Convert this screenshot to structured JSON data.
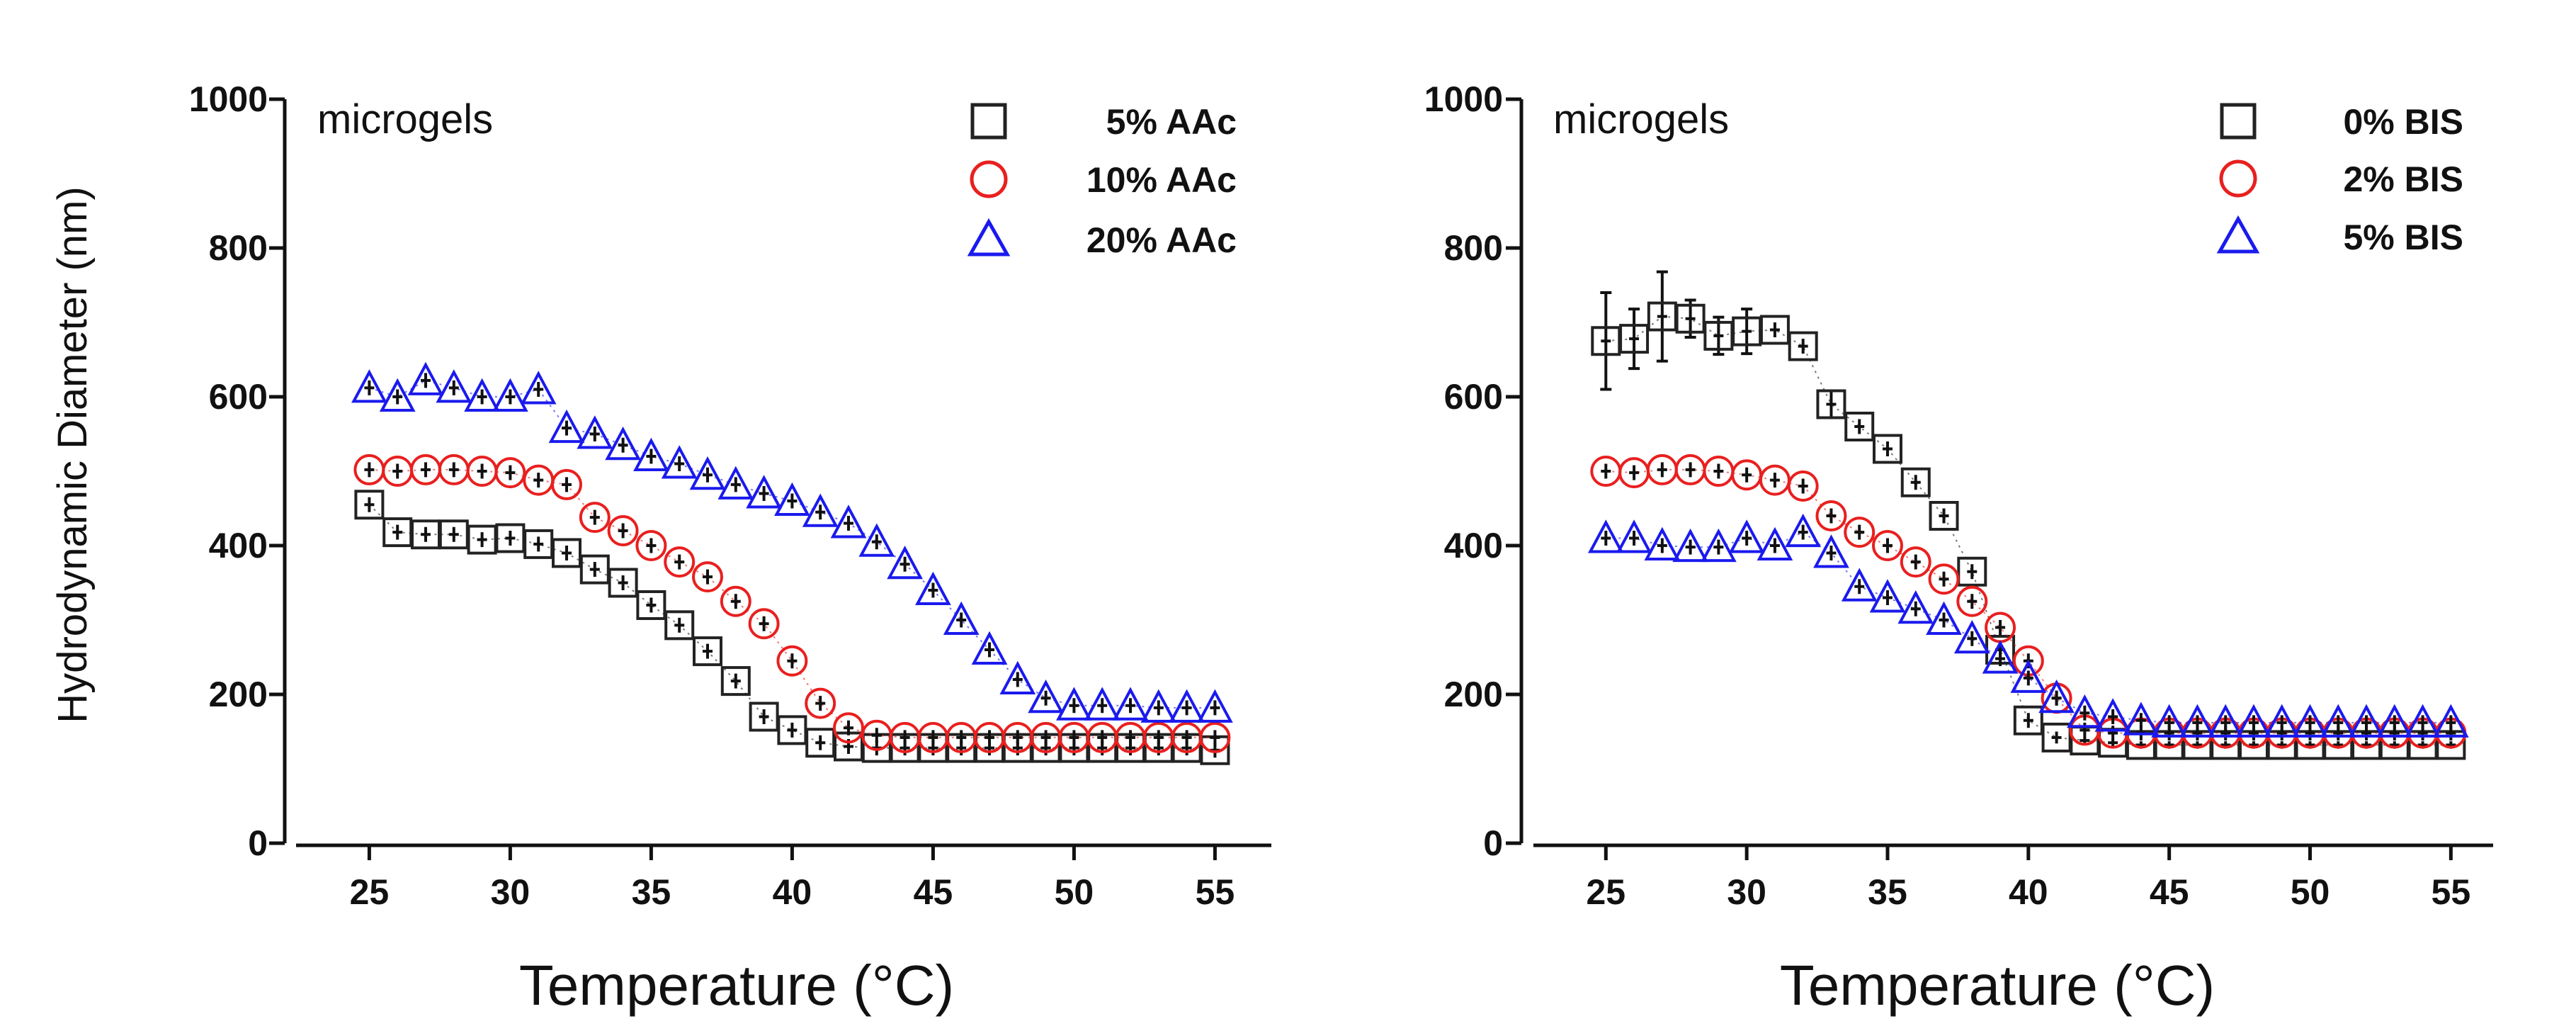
{
  "chart_data": [
    {
      "type": "scatter",
      "title": "",
      "annotation": "microgels",
      "xlabel": "Temperature (°C)",
      "ylabel": "Hydrodynamic Diameter (nm)",
      "xlim": [
        22,
        57
      ],
      "ylim": [
        0,
        1000
      ],
      "xticks": [
        "25",
        "30",
        "35",
        "40",
        "45",
        "50",
        "55"
      ],
      "yticks": [
        "0",
        "200",
        "400",
        "600",
        "800",
        "1000"
      ],
      "grid": false,
      "legend_position": "top-right",
      "x": [
        25,
        26,
        27,
        28,
        29,
        30,
        31,
        32,
        33,
        34,
        35,
        36,
        37,
        38,
        39,
        40,
        41,
        42,
        43,
        44,
        45,
        46,
        47,
        48,
        49,
        50,
        51,
        52,
        53,
        54,
        55
      ],
      "series": [
        {
          "name": "5% AAc",
          "marker": "square",
          "color": "#222222",
          "values": [
            455,
            418,
            415,
            415,
            408,
            410,
            402,
            390,
            368,
            350,
            320,
            293,
            258,
            218,
            170,
            152,
            135,
            130,
            128,
            128,
            128,
            128,
            128,
            128,
            128,
            128,
            128,
            128,
            128,
            128,
            125
          ]
        },
        {
          "name": "10% AAc",
          "marker": "circle",
          "color": "#e8201f",
          "values": [
            502,
            500,
            502,
            502,
            500,
            498,
            488,
            482,
            438,
            420,
            400,
            378,
            358,
            325,
            295,
            245,
            188,
            155,
            145,
            142,
            142,
            142,
            142,
            142,
            142,
            142,
            142,
            142,
            142,
            142,
            142
          ]
        },
        {
          "name": "20% AAc",
          "marker": "triangle",
          "color": "#1a1aee",
          "values": [
            612,
            600,
            622,
            612,
            600,
            600,
            610,
            558,
            550,
            535,
            520,
            510,
            495,
            482,
            470,
            460,
            445,
            430,
            405,
            375,
            340,
            300,
            260,
            220,
            195,
            185,
            185,
            185,
            182,
            182,
            182
          ]
        }
      ]
    },
    {
      "type": "scatter",
      "title": "",
      "annotation": "microgels",
      "xlabel": "Temperature (°C)",
      "ylabel": "",
      "xlim": [
        22,
        56.5
      ],
      "ylim": [
        0,
        1000
      ],
      "xticks": [
        "25",
        "30",
        "35",
        "40",
        "45",
        "50",
        "55"
      ],
      "yticks": [
        "0",
        "200",
        "400",
        "600",
        "800",
        "1000"
      ],
      "grid": false,
      "legend_position": "top-right",
      "x": [
        25,
        26,
        27,
        28,
        29,
        30,
        31,
        32,
        33,
        34,
        35,
        36,
        37,
        38,
        39,
        40,
        41,
        42,
        43,
        44,
        45,
        46,
        47,
        48,
        49,
        50,
        51,
        52,
        53,
        54,
        55
      ],
      "series": [
        {
          "name": "0% BIS",
          "marker": "square",
          "color": "#222222",
          "values": [
            675,
            678,
            708,
            705,
            682,
            688,
            690,
            668,
            590,
            560,
            530,
            485,
            440,
            365,
            260,
            165,
            142,
            138,
            135,
            132,
            132,
            132,
            132,
            132,
            132,
            132,
            132,
            132,
            132,
            132,
            132
          ],
          "errors": [
            65,
            40,
            60,
            25,
            25,
            30,
            10,
            10,
            18,
            10,
            10,
            10,
            10,
            10,
            10,
            10,
            8,
            5,
            5,
            5,
            5,
            5,
            5,
            5,
            5,
            5,
            5,
            5,
            5,
            5,
            5
          ]
        },
        {
          "name": "2% BIS",
          "marker": "circle",
          "color": "#e8201f",
          "values": [
            500,
            498,
            502,
            502,
            500,
            495,
            488,
            480,
            440,
            418,
            400,
            378,
            355,
            325,
            290,
            245,
            195,
            152,
            148,
            148,
            148,
            148,
            148,
            148,
            148,
            148,
            148,
            148,
            148,
            148,
            148
          ]
        },
        {
          "name": "5% BIS",
          "marker": "triangle",
          "color": "#1a1aee",
          "values": [
            410,
            410,
            400,
            398,
            398,
            410,
            400,
            418,
            390,
            345,
            330,
            315,
            300,
            275,
            248,
            222,
            195,
            175,
            170,
            165,
            162,
            162,
            162,
            162,
            162,
            162,
            162,
            162,
            162,
            162,
            162
          ]
        }
      ]
    }
  ]
}
